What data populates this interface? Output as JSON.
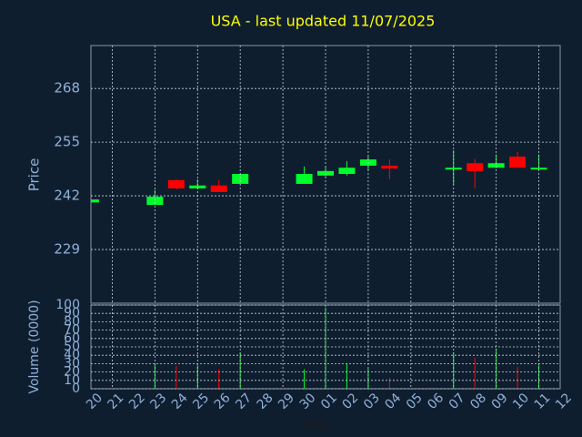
{
  "chart_data": {
    "type": "candlestick",
    "title": "USA - last updated 11/07/2025",
    "ylabel": "Price",
    "y2label": "Volume (0000)",
    "xlabel": "Day",
    "categories": [
      "20",
      "21",
      "22",
      "23",
      "24",
      "25",
      "26",
      "27",
      "28",
      "29",
      "30",
      "01",
      "02",
      "03",
      "04",
      "05",
      "06",
      "07",
      "08",
      "09",
      "10",
      "11",
      "12"
    ],
    "open": [
      240.4,
      null,
      null,
      239.8,
      245.8,
      243.8,
      244.5,
      244.9,
      null,
      null,
      244.9,
      246.9,
      247.3,
      249.3,
      249.3,
      null,
      null,
      248.4,
      249.9,
      248.8,
      251.5,
      248.4,
      null
    ],
    "high": [
      241.2,
      null,
      null,
      243.4,
      246.0,
      246.0,
      245.8,
      247.3,
      null,
      null,
      249.1,
      249.1,
      250.4,
      251.7,
      250.8,
      null,
      null,
      253.0,
      251.0,
      252.0,
      252.6,
      252.0,
      null
    ],
    "low": [
      240.3,
      null,
      null,
      239.8,
      243.6,
      243.6,
      242.9,
      244.9,
      null,
      null,
      244.9,
      246.5,
      246.9,
      248.0,
      246.0,
      null,
      null,
      244.7,
      243.8,
      248.8,
      248.8,
      248.4,
      null
    ],
    "close": [
      241.1,
      null,
      null,
      241.8,
      243.8,
      244.5,
      242.9,
      247.3,
      null,
      null,
      247.3,
      248.0,
      248.8,
      250.8,
      248.6,
      null,
      null,
      248.8,
      248.0,
      249.9,
      248.8,
      248.8,
      null
    ],
    "volume": [
      null,
      null,
      null,
      29,
      27,
      28,
      23,
      43,
      null,
      null,
      23,
      97,
      30,
      24,
      13,
      null,
      null,
      43,
      37,
      48,
      26,
      28,
      null
    ],
    "ylim": [
      216,
      278.4
    ],
    "yticks": [
      229,
      242,
      255,
      268
    ],
    "y2lim": [
      0,
      100
    ],
    "y2ticks": [
      0,
      10,
      20,
      30,
      40,
      50,
      60,
      70,
      80,
      90,
      100
    ],
    "up_color": "#00ff2a",
    "down_color": "#ff0000",
    "grid": true
  }
}
